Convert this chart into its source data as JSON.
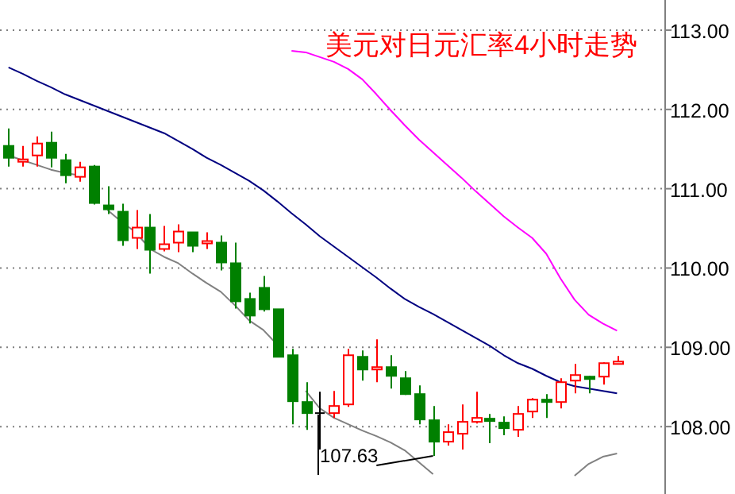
{
  "chart_data": {
    "type": "candlestick",
    "title": "美元对日元汇率4小时走势",
    "categories": [
      null,
      null,
      null,
      null,
      null,
      null,
      null,
      null,
      null,
      null,
      null,
      null,
      null,
      null,
      null,
      null,
      null,
      null,
      null,
      null,
      null,
      null,
      null,
      null,
      null,
      null,
      null,
      null,
      null,
      null,
      null,
      null,
      null,
      null,
      null,
      null,
      null,
      null,
      null,
      null,
      null,
      null,
      null,
      null
    ],
    "ohlc": [
      [
        111.54,
        111.76,
        111.28,
        111.39
      ],
      [
        111.36,
        111.54,
        111.28,
        111.37
      ],
      [
        111.42,
        111.66,
        111.28,
        111.57
      ],
      [
        111.58,
        111.72,
        111.27,
        111.39
      ],
      [
        111.36,
        111.44,
        111.07,
        111.17
      ],
      [
        111.15,
        111.34,
        111.09,
        111.27
      ],
      [
        111.28,
        111.3,
        110.8,
        110.82
      ],
      [
        110.79,
        111.03,
        110.68,
        110.74
      ],
      [
        110.71,
        110.81,
        110.28,
        110.35
      ],
      [
        110.38,
        110.73,
        110.24,
        110.51
      ],
      [
        110.51,
        110.68,
        109.93,
        110.23
      ],
      [
        110.24,
        110.53,
        110.21,
        110.3
      ],
      [
        110.32,
        110.55,
        110.2,
        110.46
      ],
      [
        110.45,
        110.45,
        110.2,
        110.28
      ],
      [
        110.31,
        110.45,
        110.24,
        110.34
      ],
      [
        110.32,
        110.41,
        109.97,
        110.07
      ],
      [
        110.06,
        110.32,
        109.49,
        109.58
      ],
      [
        109.61,
        109.69,
        109.3,
        109.4
      ],
      [
        109.75,
        109.9,
        109.45,
        109.48
      ],
      [
        109.48,
        109.48,
        108.88,
        108.88
      ],
      [
        108.9,
        108.98,
        108.03,
        108.32
      ],
      [
        108.31,
        108.56,
        107.96,
        108.17
      ],
      [
        108.17,
        108.44,
        107.71,
        108.17
      ],
      [
        108.17,
        108.45,
        108.11,
        108.26
      ],
      [
        108.28,
        108.98,
        108.25,
        108.9
      ],
      [
        108.88,
        108.96,
        108.58,
        108.72
      ],
      [
        108.73,
        109.1,
        108.56,
        108.75
      ],
      [
        108.75,
        108.9,
        108.48,
        108.64
      ],
      [
        108.61,
        108.7,
        108.4,
        108.41
      ],
      [
        108.41,
        108.52,
        108.03,
        108.09
      ],
      [
        108.08,
        108.26,
        107.63,
        107.81
      ],
      [
        107.81,
        108.03,
        107.76,
        107.93
      ],
      [
        107.91,
        108.28,
        107.71,
        108.06
      ],
      [
        108.06,
        108.44,
        108.04,
        108.11
      ],
      [
        108.1,
        108.16,
        107.79,
        108.08
      ],
      [
        108.05,
        108.13,
        107.89,
        107.98
      ],
      [
        107.96,
        108.26,
        107.87,
        108.16
      ],
      [
        108.19,
        108.36,
        108.11,
        108.34
      ],
      [
        108.34,
        108.41,
        108.11,
        108.32
      ],
      [
        108.31,
        108.61,
        108.23,
        108.56
      ],
      [
        108.58,
        108.79,
        108.42,
        108.65
      ],
      [
        108.63,
        108.64,
        108.42,
        108.62
      ],
      [
        108.63,
        108.81,
        108.53,
        108.8
      ],
      [
        108.8,
        108.89,
        108.8,
        108.82
      ]
    ],
    "series": [
      {
        "type": "line",
        "color": "#000080",
        "values": [
          112.53,
          112.45,
          112.36,
          112.28,
          112.19,
          112.12,
          112.05,
          111.98,
          111.91,
          111.84,
          111.77,
          111.7,
          111.6,
          111.5,
          111.39,
          111.3,
          111.2,
          111.1,
          110.98,
          110.84,
          110.69,
          110.55,
          110.4,
          110.27,
          110.14,
          110.01,
          109.88,
          109.74,
          109.61,
          109.51,
          109.42,
          109.32,
          109.22,
          109.12,
          109.02,
          108.9,
          108.8,
          108.73,
          108.64,
          108.56,
          108.51,
          108.48,
          108.45,
          108.42
        ]
      },
      {
        "type": "line",
        "color": "#ff00ff",
        "values": [
          null,
          null,
          null,
          null,
          null,
          null,
          null,
          null,
          null,
          null,
          null,
          null,
          null,
          null,
          null,
          null,
          null,
          null,
          null,
          null,
          112.74,
          112.72,
          112.66,
          112.6,
          112.51,
          112.38,
          112.19,
          111.99,
          111.8,
          111.62,
          111.46,
          111.3,
          111.14,
          110.97,
          110.81,
          110.65,
          110.51,
          110.38,
          110.18,
          109.87,
          109.6,
          109.41,
          109.3,
          109.21
        ]
      },
      {
        "type": "line",
        "color": "#808080",
        "values": [
          111.42,
          111.36,
          111.3,
          111.24,
          111.2,
          111.17,
          null,
          110.73,
          110.58,
          110.45,
          110.24,
          110.14,
          110.06,
          109.93,
          109.81,
          109.7,
          109.53,
          109.34,
          109.22,
          109.03,
          null,
          108.45,
          108.23,
          108.11,
          108.03,
          107.95,
          107.88,
          107.8,
          107.7,
          107.55,
          107.4,
          null,
          null,
          null,
          null,
          null,
          null,
          null,
          null,
          null,
          107.38,
          107.53,
          107.62,
          107.66
        ]
      }
    ],
    "annotations": [
      "107.63"
    ],
    "ylim": [
      107.15,
      113.38
    ],
    "yticks": [
      {
        "value": 108,
        "label": "108.00"
      },
      {
        "value": 109,
        "label": "109.00"
      },
      {
        "value": 110,
        "label": "110.00"
      },
      {
        "value": 111,
        "label": "111.00"
      },
      {
        "value": 112,
        "label": "112.00"
      },
      {
        "value": 113,
        "label": "113.00"
      }
    ],
    "grid": "y"
  }
}
